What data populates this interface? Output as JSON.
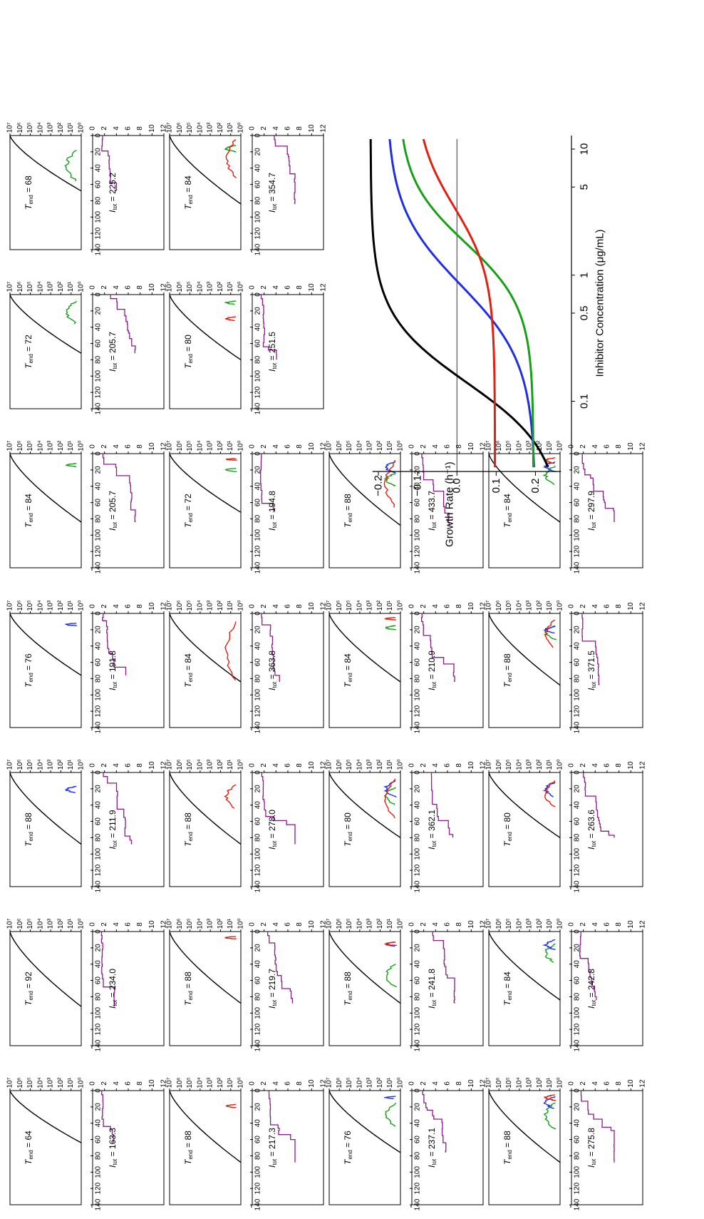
{
  "figure": {
    "upper_ylabels": [
      "12",
      "10",
      "8",
      "6",
      "4",
      "2",
      "0"
    ],
    "lower_ylabels": [
      "10⁷",
      "10⁶",
      "10⁵",
      "10⁴",
      "10³",
      "10²",
      "10¹",
      "10⁰"
    ],
    "xlabels": [
      "0",
      "20",
      "40",
      "60",
      "80",
      "100",
      "120",
      "140"
    ]
  },
  "panels": [
    {
      "col": 0,
      "row": 0,
      "itot": "163.3",
      "tend": "64",
      "tend_num": 64,
      "limits": {
        "green": null,
        "blue": null,
        "red": null
      }
    },
    {
      "col": 0,
      "row": 1,
      "itot": "234.0",
      "tend": "92",
      "tend_num": 92,
      "limits": {
        "green": null,
        "blue": null,
        "red": null
      }
    },
    {
      "col": 0,
      "row": 2,
      "itot": "211.9",
      "tend": "88",
      "tend_num": 88,
      "limits": {
        "green": null,
        "blue": [
          17,
          25
        ],
        "red": null
      }
    },
    {
      "col": 0,
      "row": 3,
      "itot": "191.8",
      "tend": "76",
      "tend_num": 76,
      "limits": {
        "green": null,
        "blue": [
          12,
          15
        ],
        "red": null
      }
    },
    {
      "col": 0,
      "row": 4,
      "itot": "205.7",
      "tend": "84",
      "tend_num": 84,
      "limits": {
        "green": [
          12,
          16
        ],
        "blue": null,
        "red": null
      }
    },
    {
      "col": 0,
      "row": 5,
      "itot": "205.7",
      "tend": "72",
      "tend_num": 72,
      "limits": {
        "green": [
          8,
          36
        ],
        "blue": null,
        "red": null
      }
    },
    {
      "col": 0,
      "row": 6,
      "itot": "225.2",
      "tend": "68",
      "tend_num": 68,
      "limits": {
        "green": [
          18,
          56
        ],
        "blue": null,
        "red": null
      }
    },
    {
      "col": 1,
      "row": 0,
      "itot": "217.3",
      "tend": "88",
      "tend_num": 88,
      "limits": {
        "green": null,
        "blue": null,
        "red": [
          17,
          21
        ]
      }
    },
    {
      "col": 1,
      "row": 1,
      "itot": "219.7",
      "tend": "88",
      "tend_num": 88,
      "limits": {
        "green": null,
        "blue": null,
        "red": [
          6,
          9
        ]
      }
    },
    {
      "col": 1,
      "row": 2,
      "itot": "278.0",
      "tend": "88",
      "tend_num": 88,
      "limits": {
        "green": null,
        "blue": null,
        "red": [
          15,
          44
        ]
      }
    },
    {
      "col": 1,
      "row": 3,
      "itot": "363.8",
      "tend": "84",
      "tend_num": 84,
      "limits": {
        "green": null,
        "blue": null,
        "red": [
          10,
          82
        ]
      }
    },
    {
      "col": 1,
      "row": 4,
      "itot": "194.8",
      "tend": "72",
      "tend_num": 72,
      "limits": {
        "green": [
          18,
          22
        ],
        "blue": null,
        "red": [
          6,
          8
        ]
      }
    },
    {
      "col": 1,
      "row": 5,
      "itot": "251.5",
      "tend": "80",
      "tend_num": 80,
      "limits": {
        "green": [
          8,
          12
        ],
        "blue": null,
        "red": [
          27,
          32
        ]
      }
    },
    {
      "col": 1,
      "row": 6,
      "itot": "354.7",
      "tend": "84",
      "tend_num": 84,
      "limits": {
        "green": [
          12,
          20
        ],
        "blue": null,
        "red": [
          5,
          52
        ]
      }
    },
    {
      "col": 2,
      "row": 0,
      "itot": "237.1",
      "tend": "76",
      "tend_num": 76,
      "limits": {
        "green": [
          15,
          44
        ],
        "blue": [
          7,
          10
        ],
        "red": null
      }
    },
    {
      "col": 2,
      "row": 1,
      "itot": "241.8",
      "tend": "88",
      "tend_num": 88,
      "limits": {
        "green": [
          40,
          68
        ],
        "blue": [
          13,
          18
        ],
        "red": [
          13,
          17
        ]
      }
    },
    {
      "col": 2,
      "row": 2,
      "itot": "362.1",
      "tend": "80",
      "tend_num": 80,
      "limits": {
        "green": [
          18,
          40
        ],
        "blue": [
          10,
          30
        ],
        "red": [
          8,
          56
        ]
      }
    },
    {
      "col": 2,
      "row": 3,
      "itot": "210.9",
      "tend": "84",
      "tend_num": 84,
      "limits": {
        "green": [
          15,
          20
        ],
        "blue": null,
        "red": [
          5,
          8
        ]
      }
    },
    {
      "col": 2,
      "row": 4,
      "itot": "433.7",
      "tend": "88",
      "tend_num": 88,
      "limits": {
        "green": [
          24,
          40
        ],
        "blue": [
          10,
          24
        ],
        "red": [
          8,
          66
        ]
      }
    },
    {
      "col": 3,
      "row": 0,
      "itot": "275.8",
      "tend": "88",
      "tend_num": 88,
      "limits": {
        "green": [
          15,
          47
        ],
        "blue": [
          7,
          22
        ],
        "red": [
          5,
          12
        ]
      }
    },
    {
      "col": 3,
      "row": 1,
      "itot": "242.8",
      "tend": "84",
      "tend_num": 84,
      "limits": {
        "green": [
          15,
          38
        ],
        "blue": [
          10,
          22
        ],
        "red": null
      }
    },
    {
      "col": 3,
      "row": 2,
      "itot": "263.6",
      "tend": "80",
      "tend_num": 80,
      "limits": {
        "green": null,
        "blue": [
          12,
          30
        ],
        "red": [
          10,
          42
        ]
      }
    },
    {
      "col": 3,
      "row": 3,
      "itot": "371.5",
      "tend": "88",
      "tend_num": 88,
      "limits": {
        "green": [
          15,
          32
        ],
        "blue": [
          16,
          24
        ],
        "red": [
          8,
          42
        ]
      }
    },
    {
      "col": 3,
      "row": 4,
      "itot": "297.9",
      "tend": "84",
      "tend_num": 84,
      "limits": {
        "green": [
          15,
          38
        ],
        "blue": [
          10,
          22
        ],
        "red": [
          5,
          12
        ]
      }
    }
  ],
  "chart_data": {
    "type": "line",
    "xlabel": "Inhibitor Concentration (μg/mL)",
    "ylabel": "Growth Rate (h⁻¹)",
    "x_scale": "log",
    "xlim": [
      0.03,
      12
    ],
    "ylim": [
      -0.22,
      0.27
    ],
    "xticks": [
      {
        "value": 0.1,
        "label": "0.1"
      },
      {
        "value": 0.5,
        "label": "0.5"
      },
      {
        "value": 1,
        "label": "1"
      },
      {
        "value": 5,
        "label": "5"
      },
      {
        "value": 10,
        "label": "10"
      }
    ],
    "yticks": [
      {
        "value": 0.2,
        "label": "0.2"
      },
      {
        "value": 0.1,
        "label": "0.1"
      },
      {
        "value": 0,
        "label": "0.0"
      },
      {
        "value": -0.1,
        "label": "−0.1"
      },
      {
        "value": -0.2,
        "label": "−0.2"
      }
    ],
    "series": [
      {
        "color": "#000000",
        "gmax": 0.27,
        "gmin": -0.22,
        "mic": 0.16,
        "kappa": 1.6
      },
      {
        "color": "#1f2ee0",
        "gmax": 0.2,
        "gmin": -0.18,
        "mic": 0.9,
        "kappa": 1.4
      },
      {
        "color": "#16a016",
        "gmax": 0.195,
        "gmin": -0.15,
        "mic": 2.1,
        "kappa": 1.7
      },
      {
        "color": "#e02010",
        "gmax": 0.097,
        "gmin": -0.11,
        "mic": 3.2,
        "kappa": 1.6
      }
    ]
  }
}
